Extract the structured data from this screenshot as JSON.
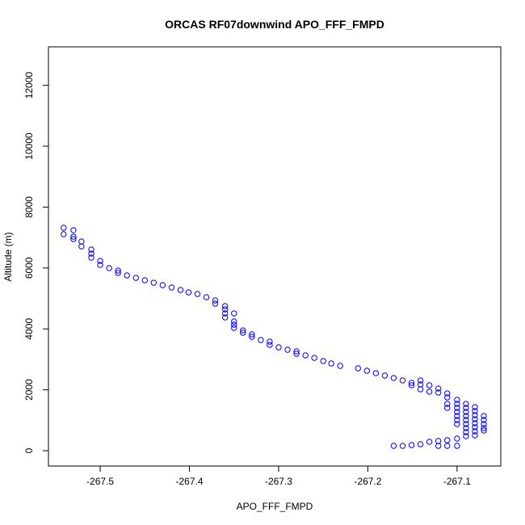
{
  "chart_data": {
    "type": "scatter",
    "title": "ORCAS RF07downwind APO_FFF_FMPD",
    "x_label": "APO_FFF_FMPD",
    "y_label": "Altitude (m)",
    "xlim": [
      -267.558,
      -267.051
    ],
    "ylim": [
      -504,
      13263
    ],
    "xticks": [
      -267.5,
      -267.4,
      -267.3,
      -267.2,
      -267.1
    ],
    "yticks": [
      0,
      2000,
      4000,
      6000,
      8000,
      10000,
      12000
    ],
    "series": [
      {
        "color": "#0000ff",
        "x": [
          -267.541,
          -267.541,
          -267.53,
          -267.53,
          -267.53,
          -267.521,
          -267.521,
          -267.51,
          -267.51,
          -267.51,
          -267.5,
          -267.5,
          -267.49,
          -267.48,
          -267.48,
          -267.47,
          -267.46,
          -267.45,
          -267.44,
          -267.43,
          -267.42,
          -267.41,
          -267.401,
          -267.391,
          -267.381,
          -267.371,
          -267.371,
          -267.36,
          -267.36,
          -267.36,
          -267.36,
          -267.35,
          -267.35,
          -267.35,
          -267.35,
          -267.34,
          -267.34,
          -267.33,
          -267.33,
          -267.32,
          -267.31,
          -267.31,
          -267.3,
          -267.29,
          -267.28,
          -267.28,
          -267.27,
          -267.26,
          -267.25,
          -267.241,
          -267.231,
          -267.211,
          -267.201,
          -267.191,
          -267.181,
          -267.171,
          -267.161,
          -267.151,
          -267.151,
          -267.141,
          -267.141,
          -267.141,
          -267.131,
          -267.131,
          -267.121,
          -267.121,
          -267.111,
          -267.111,
          -267.111,
          -267.111,
          -267.1,
          -267.1,
          -267.1,
          -267.1,
          -267.1,
          -267.1,
          -267.1,
          -267.09,
          -267.09,
          -267.09,
          -267.09,
          -267.09,
          -267.09,
          -267.09,
          -267.09,
          -267.09,
          -267.08,
          -267.08,
          -267.08,
          -267.08,
          -267.08,
          -267.08,
          -267.08,
          -267.08,
          -267.07,
          -267.07,
          -267.07,
          -267.07,
          -267.07,
          -267.171,
          -267.161,
          -267.151,
          -267.141,
          -267.131,
          -267.121,
          -267.111,
          -267.1,
          -267.111,
          -267.121,
          -267.1
        ],
        "values": [
          7321,
          7109,
          7241,
          7029,
          6950,
          6870,
          6711,
          6605,
          6472,
          6340,
          6233,
          6101,
          5995,
          5915,
          5836,
          5756,
          5676,
          5597,
          5517,
          5438,
          5358,
          5279,
          5199,
          5146,
          5040,
          4934,
          4828,
          4748,
          4642,
          4509,
          4377,
          4509,
          4244,
          4138,
          4032,
          3952,
          3873,
          3820,
          3740,
          3634,
          3581,
          3475,
          3395,
          3316,
          3263,
          3183,
          3130,
          3050,
          2944,
          2865,
          2785,
          2706,
          2626,
          2546,
          2467,
          2387,
          2308,
          2228,
          2149,
          2308,
          2175,
          2016,
          2149,
          1936,
          2042,
          1910,
          1883,
          1751,
          1538,
          1406,
          1671,
          1538,
          1406,
          1273,
          1140,
          1008,
          875,
          1538,
          1406,
          1273,
          1140,
          1008,
          875,
          743,
          610,
          477,
          1432,
          1300,
          1167,
          1034,
          902,
          769,
          637,
          504,
          1140,
          1008,
          875,
          743,
          663,
          159,
          159,
          186,
          212,
          292,
          318,
          345,
          398,
          159,
          159,
          159
        ]
      }
    ]
  }
}
